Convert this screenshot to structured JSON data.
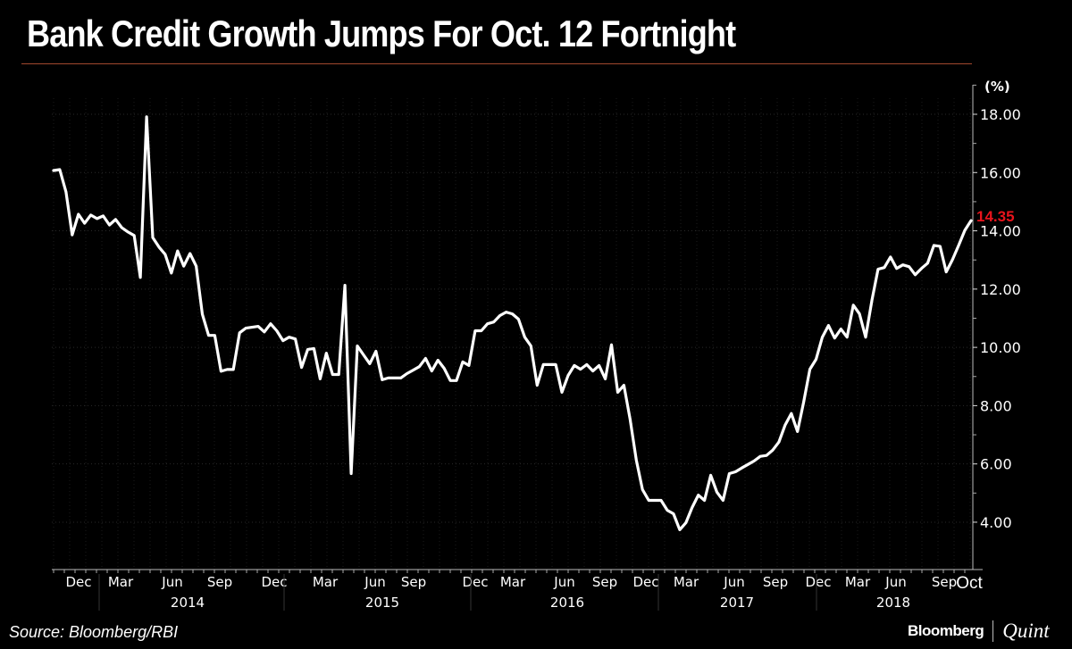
{
  "title": "Bank Credit Growth Jumps For Oct. 12 Fortnight",
  "source": "Source: Bloomberg/RBI",
  "brand": {
    "primary": "Bloomberg",
    "secondary": "Quint"
  },
  "colors": {
    "background": "#000000",
    "line": "#ffffff",
    "last_value": "#e8141c",
    "title_rule": "#a0482e"
  },
  "axis": {
    "unit": "(%)",
    "y_ticks": [
      "18.00",
      "16.00",
      "14.00",
      "12.00",
      "10.00",
      "8.00",
      "6.00",
      "4.00"
    ],
    "last_value_label": "14.35",
    "x_month_ticks": [
      "Dec",
      "Mar",
      "Jun",
      "Sep",
      "Dec",
      "Mar",
      "Jun",
      "Sep",
      "Dec",
      "Mar",
      "Jun",
      "Sep",
      "Dec",
      "Mar",
      "Jun",
      "Sep",
      "Dec",
      "Mar",
      "Jun",
      "Sep",
      "Oct"
    ],
    "x_year_labels": [
      "2014",
      "2015",
      "2016",
      "2017",
      "2018"
    ]
  },
  "chart_data": {
    "type": "line",
    "title": "Bank Credit Growth Jumps For Oct. 12 Fortnight",
    "xlabel": "",
    "ylabel": "(%)",
    "ylim": [
      2.6,
      19.0
    ],
    "y_ticks": [
      4,
      6,
      8,
      10,
      12,
      14,
      16,
      18
    ],
    "x_ticks": [
      "Dec 2013",
      "Mar 2014",
      "Jun 2014",
      "Sep 2014",
      "Dec 2014",
      "Mar 2015",
      "Jun 2015",
      "Sep 2015",
      "Dec 2015",
      "Mar 2016",
      "Jun 2016",
      "Sep 2016",
      "Dec 2016",
      "Mar 2017",
      "Jun 2017",
      "Sep 2017",
      "Dec 2017",
      "Mar 2018",
      "Jun 2018",
      "Sep 2018",
      "Oct 2018"
    ],
    "grid": true,
    "legend": "none",
    "last_value": 14.35,
    "series": [
      {
        "name": "Bank credit growth (YoY %)",
        "frequency": "fortnightly",
        "start": "Nov 2013",
        "end": "Oct 12, 2018",
        "values": [
          16.07,
          16.1,
          15.33,
          13.86,
          14.57,
          14.26,
          14.54,
          14.42,
          14.51,
          14.2,
          14.39,
          14.11,
          13.96,
          13.84,
          12.4,
          17.91,
          13.77,
          13.44,
          13.19,
          12.55,
          13.31,
          12.79,
          13.22,
          12.79,
          11.14,
          10.41,
          10.41,
          9.18,
          9.24,
          9.24,
          10.5,
          10.66,
          10.69,
          10.72,
          10.53,
          10.81,
          10.57,
          10.23,
          10.35,
          10.29,
          9.31,
          9.93,
          9.96,
          8.92,
          9.8,
          9.07,
          9.07,
          12.13,
          5.67,
          10.05,
          9.74,
          9.44,
          9.87,
          8.89,
          8.95,
          8.95,
          8.95,
          9.1,
          9.22,
          9.34,
          9.62,
          9.19,
          9.56,
          9.28,
          8.86,
          8.86,
          9.5,
          9.38,
          10.57,
          10.57,
          10.81,
          10.87,
          11.09,
          11.21,
          11.15,
          10.97,
          10.35,
          10.05,
          8.7,
          9.41,
          9.41,
          9.41,
          8.46,
          9.04,
          9.38,
          9.25,
          9.41,
          9.19,
          9.38,
          8.92,
          10.09,
          8.46,
          8.7,
          7.54,
          6.13,
          5.12,
          4.75,
          4.75,
          4.75,
          4.41,
          4.29,
          3.74,
          3.98,
          4.5,
          4.93,
          4.75,
          5.61,
          5.03,
          4.75,
          5.67,
          5.73,
          5.86,
          5.98,
          6.1,
          6.26,
          6.29,
          6.47,
          6.75,
          7.33,
          7.73,
          7.11,
          8.12,
          9.25,
          9.59,
          10.35,
          10.75,
          10.32,
          10.63,
          10.35,
          11.45,
          11.15,
          10.35,
          11.61,
          12.68,
          12.74,
          13.1,
          12.71,
          12.83,
          12.77,
          12.49,
          12.71,
          12.89,
          13.5,
          13.47,
          12.59,
          13.01,
          13.5,
          14.02,
          14.35
        ]
      }
    ]
  }
}
